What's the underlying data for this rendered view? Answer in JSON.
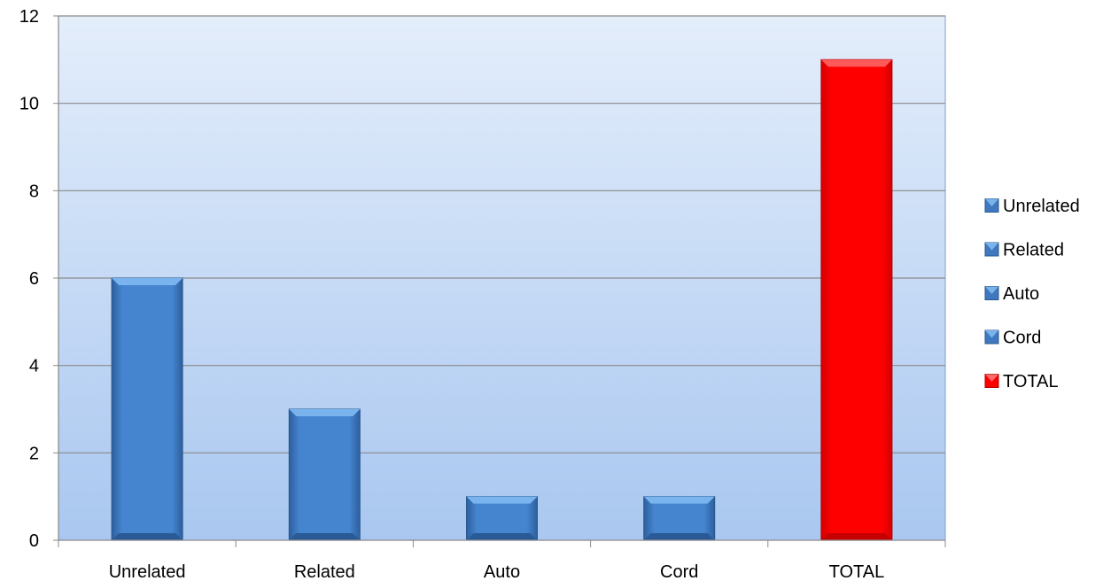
{
  "chart_data": {
    "type": "bar",
    "categories": [
      "Unrelated",
      "Related",
      "Auto",
      "Cord",
      "TOTAL"
    ],
    "values": [
      6,
      3,
      1,
      1,
      11
    ],
    "colors": [
      "#3f78bf",
      "#3f78bf",
      "#3f78bf",
      "#3f78bf",
      "#ff0000"
    ],
    "ylim": [
      0,
      12
    ],
    "yticks": [
      0,
      2,
      4,
      6,
      8,
      10,
      12
    ],
    "grid": true,
    "legend": {
      "placement": "right",
      "entries": [
        {
          "label": "Unrelated",
          "color": "#3f78bf"
        },
        {
          "label": "Related",
          "color": "#3f78bf"
        },
        {
          "label": "Auto",
          "color": "#3f78bf"
        },
        {
          "label": "Cord",
          "color": "#3f78bf"
        },
        {
          "label": "TOTAL",
          "color": "#ff0000"
        }
      ]
    }
  }
}
